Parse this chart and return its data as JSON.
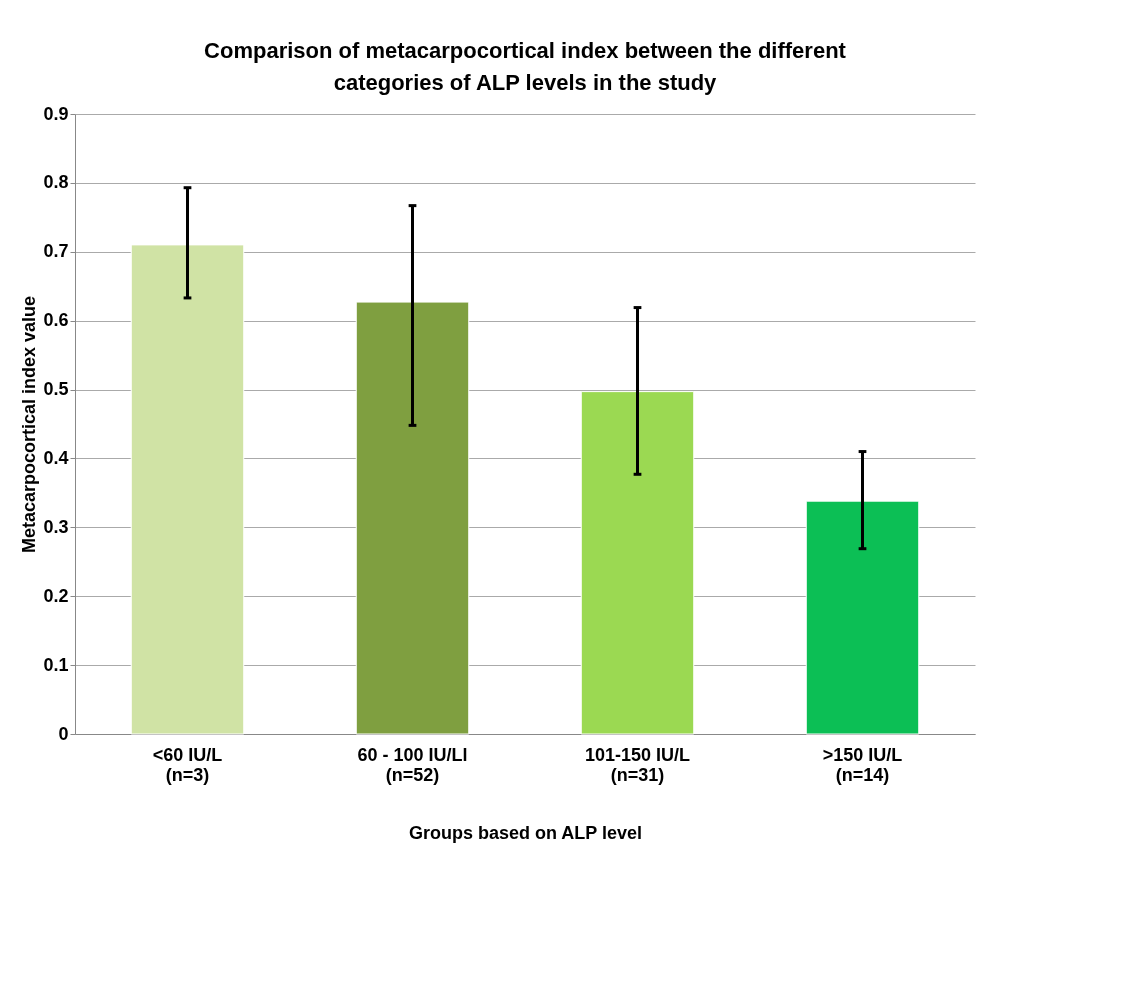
{
  "chart_data": {
    "type": "bar",
    "title": "Comparison of metacarpocortical index between the different categories of ALP levels in the study",
    "xlabel": "Groups based on ALP level",
    "ylabel": "Metacarpocortical index value",
    "categories": [
      "<60 IU/L\n(n=3)",
      "60 - 100 IU/Ll\n(n=52)",
      "101-150 IU/L\n(n=31)",
      ">150 IU/L\n(n=14)"
    ],
    "values": [
      0.71,
      0.627,
      0.497,
      0.338
    ],
    "colors": [
      "#d0e3a5",
      "#7f9f40",
      "#9bd952",
      "#0cbf55"
    ],
    "errors": [
      [
        0.633,
        0.793
      ],
      [
        0.448,
        0.767
      ],
      [
        0.377,
        0.619
      ],
      [
        0.269,
        0.41
      ]
    ],
    "ylim": [
      0,
      0.9
    ],
    "yticks": [
      0,
      0.1,
      0.2,
      0.3,
      0.4,
      0.5,
      0.6,
      0.7,
      0.8,
      0.9
    ],
    "grid": "y"
  }
}
